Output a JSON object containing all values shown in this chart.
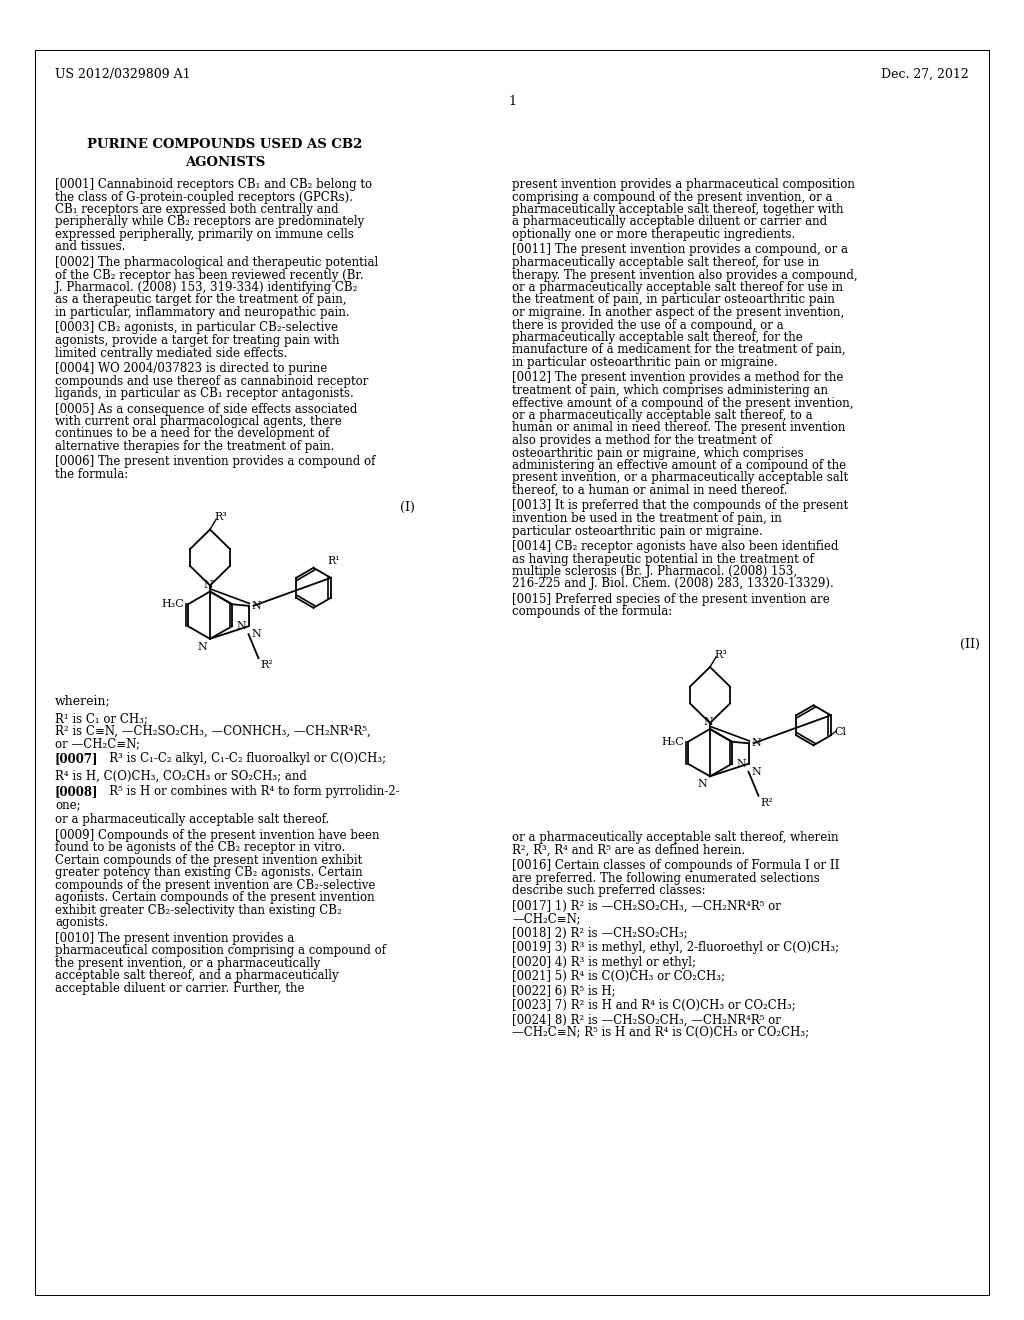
{
  "background_color": "#ffffff",
  "header_left": "US 2012/0329809 A1",
  "header_right": "Dec. 27, 2012",
  "page_number": "1",
  "title_line1": "PURINE COMPOUNDS USED AS CB2",
  "title_line2": "AGONISTS",
  "formula_I_label": "(I)",
  "formula_II_label": "(II)",
  "wherein_text": "wherein;",
  "r1_def": "R¹ is C₁ or CH₃;",
  "r2_def_line1": "R² is C≡N, —CH₂SO₂CH₃, —CONHCH₃, —CH₂NR⁴R⁵,",
  "r2_def_line2": "or —CH₂C≡N;",
  "para_0007_tag": "[0007]",
  "para_0007_body": "   R³ is C₁-C₂ alkyl, C₁-C₂ fluoroalkyl or C(O)CH₃;",
  "r4_def": "R⁴ is H, C(O)CH₃, CO₂CH₃ or SO₂CH₃; and",
  "para_0008_tag": "[0008]",
  "para_0008_body": "   R⁵ is H or combines with R⁴ to form pyrrolidin-2-one;",
  "salt_text": "or a pharmaceutically acceptable salt thereof.",
  "left_paragraphs": [
    {
      "tag": "[0001]",
      "text": "   Cannabinoid receptors CB₁ and CB₂ belong to the class of G-protein-coupled receptors (GPCRs). CB₁ receptors are expressed both centrally and peripherally while CB₂ receptors are predominately expressed peripherally, primarily on immune cells and tissues."
    },
    {
      "tag": "[0002]",
      "text": "   The pharmacological and therapeutic potential of the CB₂ receptor has been reviewed recently (Br. J. Pharmacol. (2008) 153, 319-334) identifying CB₂ as a therapeutic target for the treatment of pain, in particular, inflammatory and neuropathic pain."
    },
    {
      "tag": "[0003]",
      "text": "   CB₂ agonists, in particular CB₂-selective agonists, provide a target for treating pain with limited centrally mediated side effects."
    },
    {
      "tag": "[0004]",
      "text": "   WO 2004/037823 is directed to purine compounds and use thereof as cannabinoid receptor ligands, in particular as CB₁ receptor antagonists."
    },
    {
      "tag": "[0005]",
      "text": "   As a consequence of side effects associated with current oral pharmacological agents, there continues to be a need for the development of alternative therapies for the treatment of pain."
    },
    {
      "tag": "[0006]",
      "text": "   The present invention provides a compound of the formula:"
    }
  ],
  "para_0009_tag": "[0009]",
  "para_0009_body": "   Compounds of the present invention have been found to be agonists of the CB₂ receptor in vitro. Certain compounds of the present invention exhibit greater potency than existing CB₂ agonists. Certain compounds of the present invention are CB₂-selective agonists. Certain compounds of the present invention exhibit greater CB₂-selectivity than existing CB₂ agonists.",
  "para_0010_tag": "[0010]",
  "para_0010_body": "   The present invention provides a pharmaceutical composition comprising a compound of the present invention, or a pharmaceutically acceptable salt thereof, and a pharmaceutically acceptable diluent or carrier. Further, the",
  "right_paragraphs": [
    {
      "tag": "",
      "text": "present invention provides a pharmaceutical composition comprising a compound of the present invention, or a pharmaceutically acceptable salt thereof, together with a pharmaceutically acceptable diluent or carrier and optionally one or more therapeutic ingredients."
    },
    {
      "tag": "[0011]",
      "text": "   The present invention provides a compound, or a pharmaceutically acceptable salt thereof, for use in therapy. The present invention also provides a compound, or a pharmaceutically acceptable salt thereof for use in the treatment of pain, in particular osteoarthritic pain or migraine. In another aspect of the present invention, there is provided the use of a compound, or a pharmaceutically acceptable salt thereof, for the manufacture of a medicament for the treatment of pain, in particular osteoarthritic pain or migraine."
    },
    {
      "tag": "[0012]",
      "text": "   The present invention provides a method for the treatment of pain, which comprises administering an effective amount of a compound of the present invention, or a pharmaceutically acceptable salt thereof, to a human or animal in need thereof. The present invention also provides a method for the treatment of osteoarthritic pain or migraine, which comprises administering an effective amount of a compound of the present invention, or a pharmaceutically acceptable salt thereof, to a human or animal in need thereof."
    },
    {
      "tag": "[0013]",
      "text": "   It is preferred that the compounds of the present invention be used in the treatment of pain, in particular osteoarthritic pain or migraine."
    },
    {
      "tag": "[0014]",
      "text": "   CB₂ receptor agonists have also been identified as having therapeutic potential in the treatment of multiple sclerosis (Br. J. Pharmacol. (2008) 153, 216-225 and J. Biol. Chem. (2008) 283, 13320-13329)."
    },
    {
      "tag": "[0015]",
      "text": "   Preferred species of the present invention are compounds of the formula:"
    }
  ],
  "right_bottom_text": "or a pharmaceutically acceptable salt thereof, wherein R², R³, R⁴ and R⁵ are as defined herein.",
  "para_0016_tag": "[0016]",
  "para_0016_body": "   Certain classes of compounds of Formula I or II are preferred. The following enumerated selections describe such preferred classes:",
  "bottom_items": [
    {
      "tag": "[0017]",
      "text": "   1)  R² is —CH₂SO₂CH₃,  —CH₂NR⁴R⁵ or\n—CH₂C≡N;"
    },
    {
      "tag": "[0018]",
      "text": "   2)  R² is —CH₂SO₂CH₃;"
    },
    {
      "tag": "[0019]",
      "text": "   3)  R³ is methyl, ethyl, 2-fluoroethyl or C(O)CH₃;"
    },
    {
      "tag": "[0020]",
      "text": "   4)  R³ is methyl or ethyl;"
    },
    {
      "tag": "[0021]",
      "text": "   5)  R⁴ is C(O)CH₃ or CO₂CH₃;"
    },
    {
      "tag": "[0022]",
      "text": "   6)  R⁵ is H;"
    },
    {
      "tag": "[0023]",
      "text": "   7)  R² is H and R⁴ is C(O)CH₃ or CO₂CH₃;"
    },
    {
      "tag": "[0024]",
      "text": "   8)  R² is —CH₂SO₂CH₃,  —CH₂NR⁴R⁵ or\n—CH₂C≡N; R⁵ is H and R⁴ is C(O)CH₃ or CO₂CH₃;"
    }
  ]
}
